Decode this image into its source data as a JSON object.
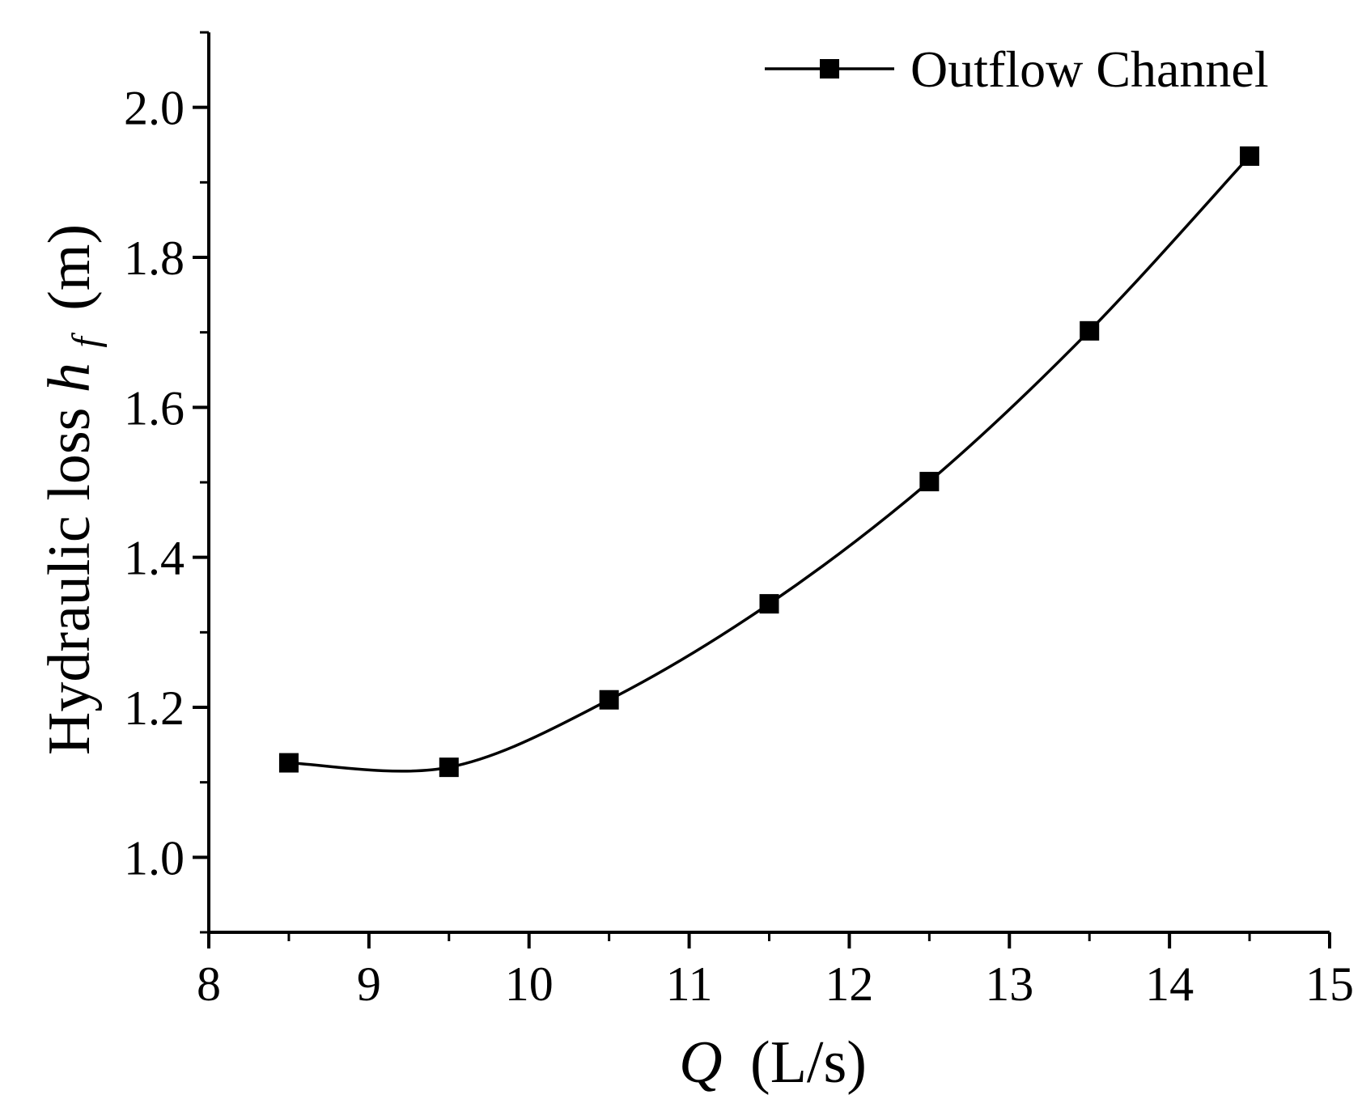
{
  "chart_data": {
    "type": "line",
    "title": "",
    "xlabel": {
      "var": "Q",
      "unit": "(L/s)"
    },
    "ylabel": {
      "prefix": "Hydraulic loss ",
      "var": "h",
      "sub": "f",
      "unit": "(m)"
    },
    "xlim": [
      8,
      15
    ],
    "ylim": [
      0.9,
      2.1
    ],
    "xticks": [
      8,
      9,
      10,
      11,
      12,
      13,
      14,
      15
    ],
    "yticks": [
      1.0,
      1.2,
      1.4,
      1.6,
      1.8,
      2.0
    ],
    "ytick_labels": [
      "1.0",
      "1.2",
      "1.4",
      "1.6",
      "1.8",
      "2.0"
    ],
    "grid": false,
    "legend_position": "top-right",
    "line_color": "#000000",
    "marker": "square",
    "series": [
      {
        "name": "Outflow Channel",
        "x": [
          8.5,
          9.5,
          10.5,
          11.5,
          12.5,
          13.5,
          14.5
        ],
        "y": [
          1.126,
          1.12,
          1.21,
          1.338,
          1.501,
          1.702,
          1.935
        ]
      }
    ]
  }
}
